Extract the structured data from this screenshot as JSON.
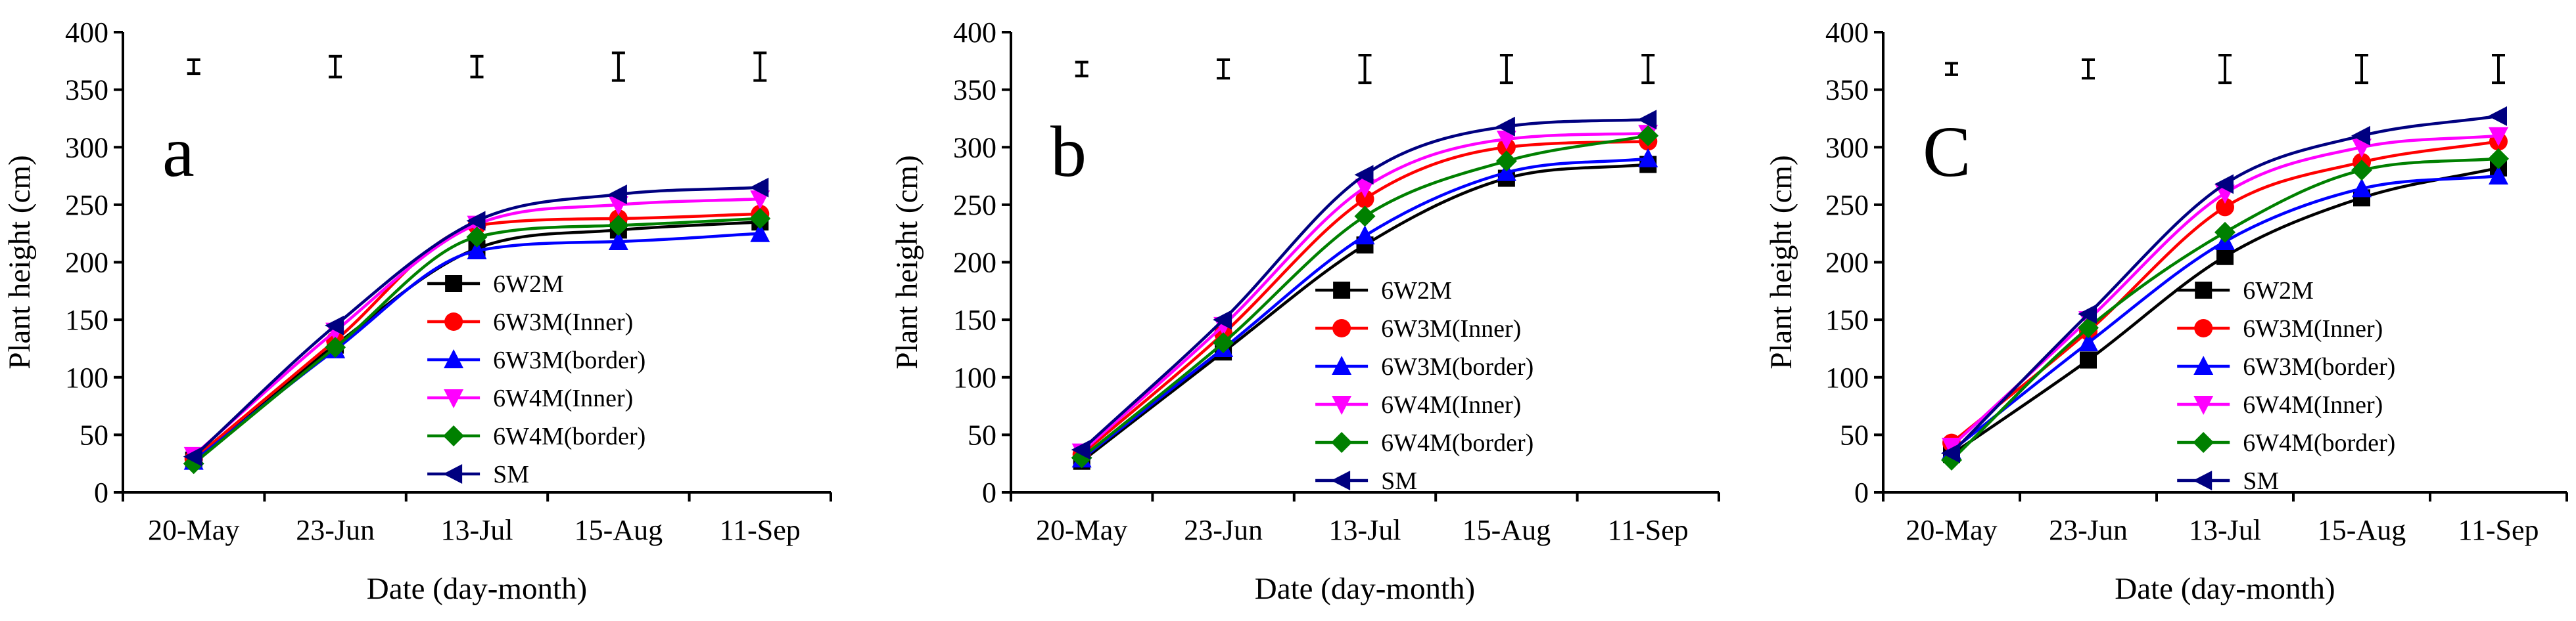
{
  "chart_data": [
    {
      "type": "line",
      "panel_label": "a",
      "title": "",
      "xlabel": "Date (day-month)",
      "ylabel": "Plant height (cm)",
      "categories": [
        "20-May",
        "23-Jun",
        "13-Jul",
        "15-Aug",
        "11-Sep"
      ],
      "ylim": [
        0,
        400
      ],
      "yticks": [
        0,
        50,
        100,
        150,
        200,
        250,
        300,
        350,
        400
      ],
      "legend_position": "lower-right",
      "error_bars": {
        "center": 370,
        "half_range": [
          6,
          9,
          9,
          12,
          12
        ]
      },
      "series": [
        {
          "name": "6W2M",
          "color": "#000000",
          "marker": "square",
          "values": [
            28,
            128,
            212,
            228,
            235
          ]
        },
        {
          "name": "6W3M(Inner)",
          "color": "#ff0000",
          "marker": "circle",
          "values": [
            29,
            132,
            232,
            238,
            242
          ]
        },
        {
          "name": "6W3M(border)",
          "color": "#0000ff",
          "marker": "triangle-up",
          "values": [
            27,
            124,
            210,
            218,
            225
          ]
        },
        {
          "name": "6W4M(Inner)",
          "color": "#ff00ff",
          "marker": "triangle-down",
          "values": [
            32,
            140,
            233,
            250,
            255
          ]
        },
        {
          "name": "6W4M(border)",
          "color": "#008000",
          "marker": "diamond",
          "values": [
            25,
            126,
            222,
            232,
            238
          ]
        },
        {
          "name": "SM",
          "color": "#000080",
          "marker": "triangle-left",
          "values": [
            31,
            145,
            236,
            259,
            265
          ]
        }
      ]
    },
    {
      "type": "line",
      "panel_label": "b",
      "title": "",
      "xlabel": "Date (day-month)",
      "ylabel": "Plant height (cm)",
      "categories": [
        "20-May",
        "23-Jun",
        "13-Jul",
        "15-Aug",
        "11-Sep"
      ],
      "ylim": [
        0,
        400
      ],
      "yticks": [
        0,
        50,
        100,
        150,
        200,
        250,
        300,
        350,
        400
      ],
      "legend_position": "lower-right",
      "error_bars": {
        "center": 368,
        "half_range": [
          6,
          8,
          12,
          12,
          12
        ]
      },
      "series": [
        {
          "name": "6W2M",
          "color": "#000000",
          "marker": "square",
          "values": [
            27,
            122,
            215,
            273,
            285
          ]
        },
        {
          "name": "6W3M(Inner)",
          "color": "#ff0000",
          "marker": "circle",
          "values": [
            33,
            138,
            255,
            300,
            305
          ]
        },
        {
          "name": "6W3M(border)",
          "color": "#0000ff",
          "marker": "triangle-up",
          "values": [
            29,
            125,
            223,
            278,
            290
          ]
        },
        {
          "name": "6W4M(Inner)",
          "color": "#ff00ff",
          "marker": "triangle-down",
          "values": [
            35,
            145,
            265,
            307,
            312
          ]
        },
        {
          "name": "6W4M(border)",
          "color": "#008000",
          "marker": "diamond",
          "values": [
            30,
            130,
            240,
            288,
            310
          ]
        },
        {
          "name": "SM",
          "color": "#000080",
          "marker": "triangle-left",
          "values": [
            37,
            150,
            276,
            318,
            324
          ]
        }
      ]
    },
    {
      "type": "line",
      "panel_label": "C",
      "title": "",
      "xlabel": "Date (day-month)",
      "ylabel": "Plant height (cm)",
      "categories": [
        "20-May",
        "23-Jun",
        "13-Jul",
        "15-Aug",
        "11-Sep"
      ],
      "ylim": [
        0,
        400
      ],
      "yticks": [
        0,
        50,
        100,
        150,
        200,
        250,
        300,
        350,
        400
      ],
      "legend_position": "lower-right",
      "error_bars": {
        "center": 368,
        "half_range": [
          5,
          8,
          12,
          12,
          12
        ]
      },
      "series": [
        {
          "name": "6W2M",
          "color": "#000000",
          "marker": "square",
          "values": [
            33,
            115,
            205,
            256,
            282
          ]
        },
        {
          "name": "6W3M(Inner)",
          "color": "#ff0000",
          "marker": "circle",
          "values": [
            43,
            140,
            248,
            287,
            305
          ]
        },
        {
          "name": "6W3M(border)",
          "color": "#0000ff",
          "marker": "triangle-up",
          "values": [
            36,
            130,
            218,
            264,
            275
          ]
        },
        {
          "name": "6W4M(Inner)",
          "color": "#ff00ff",
          "marker": "triangle-down",
          "values": [
            40,
            150,
            260,
            300,
            310
          ]
        },
        {
          "name": "6W4M(border)",
          "color": "#008000",
          "marker": "diamond",
          "values": [
            28,
            143,
            226,
            280,
            290
          ]
        },
        {
          "name": "SM",
          "color": "#000080",
          "marker": "triangle-left",
          "values": [
            34,
            155,
            268,
            310,
            327
          ]
        }
      ]
    }
  ]
}
